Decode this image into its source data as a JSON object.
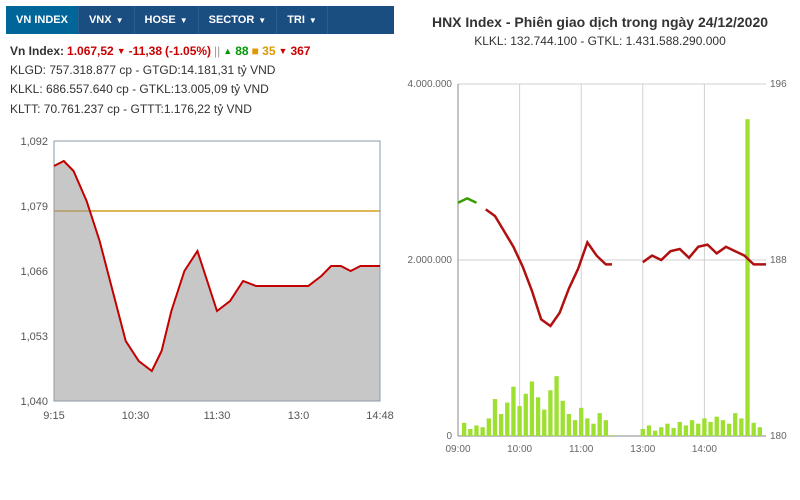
{
  "tabs": [
    {
      "label": "VN INDEX",
      "active": true
    },
    {
      "label": "VNX",
      "active": false
    },
    {
      "label": "HOSE",
      "active": false
    },
    {
      "label": "SECTOR",
      "active": false
    },
    {
      "label": "TRI",
      "active": false
    }
  ],
  "left_stats": {
    "index_label": "Vn Index:",
    "index_value": "1.067,52",
    "change": "-11,38",
    "pct": "(-1.05%)",
    "up_count": "88",
    "flat_count": "35",
    "down_count": "367",
    "line1": "KLGD: 757.318.877 cp - GTGD:14.181,31 tỷ VND",
    "line2": "KLKL: 686.557.640 cp - GTKL:13.005,09 tỷ VND",
    "line3": "KLTT: 70.761.237 cp - GTTT:1.176,22 tỷ VND"
  },
  "left_chart": {
    "type": "line",
    "ylim": [
      1040,
      1092
    ],
    "yticks": [
      1040,
      1053,
      1066,
      1079,
      1092
    ],
    "ytick_labels": [
      "1,040",
      "1,053",
      "1,066",
      "1,079",
      "1,092"
    ],
    "xticks": [
      "9:15",
      "10:30",
      "11:30",
      "13:0",
      "14:48"
    ],
    "ref_line_y": 1078,
    "line_color": "#c20000",
    "ref_color": "#d4a020",
    "fill_color": "#999999",
    "fill_opacity": 0.55,
    "bg_color": "#ffffff",
    "frame_color": "#8899aa",
    "tick_fontsize": 11,
    "data": [
      [
        0,
        1087
      ],
      [
        3,
        1088
      ],
      [
        6,
        1086
      ],
      [
        10,
        1080
      ],
      [
        14,
        1072
      ],
      [
        18,
        1062
      ],
      [
        22,
        1052
      ],
      [
        26,
        1048
      ],
      [
        30,
        1046
      ],
      [
        33,
        1050
      ],
      [
        36,
        1058
      ],
      [
        40,
        1066
      ],
      [
        44,
        1070
      ],
      [
        47,
        1064
      ],
      [
        50,
        1058
      ],
      [
        54,
        1060
      ],
      [
        58,
        1064
      ],
      [
        62,
        1063
      ],
      [
        66,
        1063
      ],
      [
        70,
        1063
      ],
      [
        74,
        1063
      ],
      [
        78,
        1063
      ],
      [
        82,
        1065
      ],
      [
        85,
        1067
      ],
      [
        88,
        1067
      ],
      [
        91,
        1066
      ],
      [
        94,
        1067
      ],
      [
        97,
        1067
      ],
      [
        100,
        1067
      ]
    ]
  },
  "right": {
    "title": "HNX Index - Phiên giao dịch trong ngày 24/12/2020",
    "subtitle": "KLKL: 132.744.100 - GTKL: 1.431.588.290.000"
  },
  "right_chart": {
    "type": "combo",
    "y1lim": [
      0,
      4000000
    ],
    "y1ticks": [
      0,
      2000000,
      4000000
    ],
    "y1tick_labels": [
      "0",
      "2.000.000",
      "4.000.000"
    ],
    "y2lim": [
      180,
      196
    ],
    "y2ticks": [
      180,
      188,
      196
    ],
    "xticks": [
      "09:00",
      "10:00",
      "11:00",
      "13:00",
      "14:00"
    ],
    "line_color_green": "#3a9d00",
    "line_color_red": "#b01010",
    "bar_color": "#9de030",
    "grid_color": "#d0d0d0",
    "frame_color": "#888888",
    "tick_fontsize": 10,
    "line_data": [
      [
        0,
        190.6
      ],
      [
        3,
        190.8
      ],
      [
        6,
        190.6
      ],
      [
        9,
        190.3
      ],
      [
        12,
        190.0
      ],
      [
        15,
        189.3
      ],
      [
        18,
        188.6
      ],
      [
        21,
        187.7
      ],
      [
        24,
        186.6
      ],
      [
        27,
        185.3
      ],
      [
        30,
        185.0
      ],
      [
        33,
        185.6
      ],
      [
        36,
        186.7
      ],
      [
        39,
        187.6
      ],
      [
        42,
        188.8
      ],
      [
        45,
        188.2
      ],
      [
        48,
        187.8
      ],
      [
        50,
        187.8
      ],
      [
        60,
        187.9
      ],
      [
        63,
        188.2
      ],
      [
        66,
        188.0
      ],
      [
        69,
        188.4
      ],
      [
        72,
        188.5
      ],
      [
        75,
        188.1
      ],
      [
        78,
        188.6
      ],
      [
        81,
        188.7
      ],
      [
        84,
        188.3
      ],
      [
        87,
        188.6
      ],
      [
        90,
        188.4
      ],
      [
        93,
        188.2
      ],
      [
        96,
        187.8
      ],
      [
        100,
        187.8
      ]
    ],
    "green_end_idx": 3,
    "bar_data": [
      [
        0,
        0
      ],
      [
        2,
        150000
      ],
      [
        4,
        80000
      ],
      [
        6,
        120000
      ],
      [
        8,
        100000
      ],
      [
        10,
        200000
      ],
      [
        12,
        420000
      ],
      [
        14,
        250000
      ],
      [
        16,
        380000
      ],
      [
        18,
        560000
      ],
      [
        20,
        340000
      ],
      [
        22,
        480000
      ],
      [
        24,
        620000
      ],
      [
        26,
        440000
      ],
      [
        28,
        300000
      ],
      [
        30,
        520000
      ],
      [
        32,
        680000
      ],
      [
        34,
        400000
      ],
      [
        36,
        250000
      ],
      [
        38,
        180000
      ],
      [
        40,
        320000
      ],
      [
        42,
        200000
      ],
      [
        44,
        140000
      ],
      [
        46,
        260000
      ],
      [
        48,
        180000
      ],
      [
        50,
        10000
      ],
      [
        60,
        80000
      ],
      [
        62,
        120000
      ],
      [
        64,
        60000
      ],
      [
        66,
        100000
      ],
      [
        68,
        140000
      ],
      [
        70,
        90000
      ],
      [
        72,
        160000
      ],
      [
        74,
        120000
      ],
      [
        76,
        180000
      ],
      [
        78,
        140000
      ],
      [
        80,
        200000
      ],
      [
        82,
        160000
      ],
      [
        84,
        220000
      ],
      [
        86,
        180000
      ],
      [
        88,
        140000
      ],
      [
        90,
        260000
      ],
      [
        92,
        200000
      ],
      [
        94,
        3600000
      ],
      [
        96,
        150000
      ],
      [
        98,
        100000
      ]
    ]
  }
}
